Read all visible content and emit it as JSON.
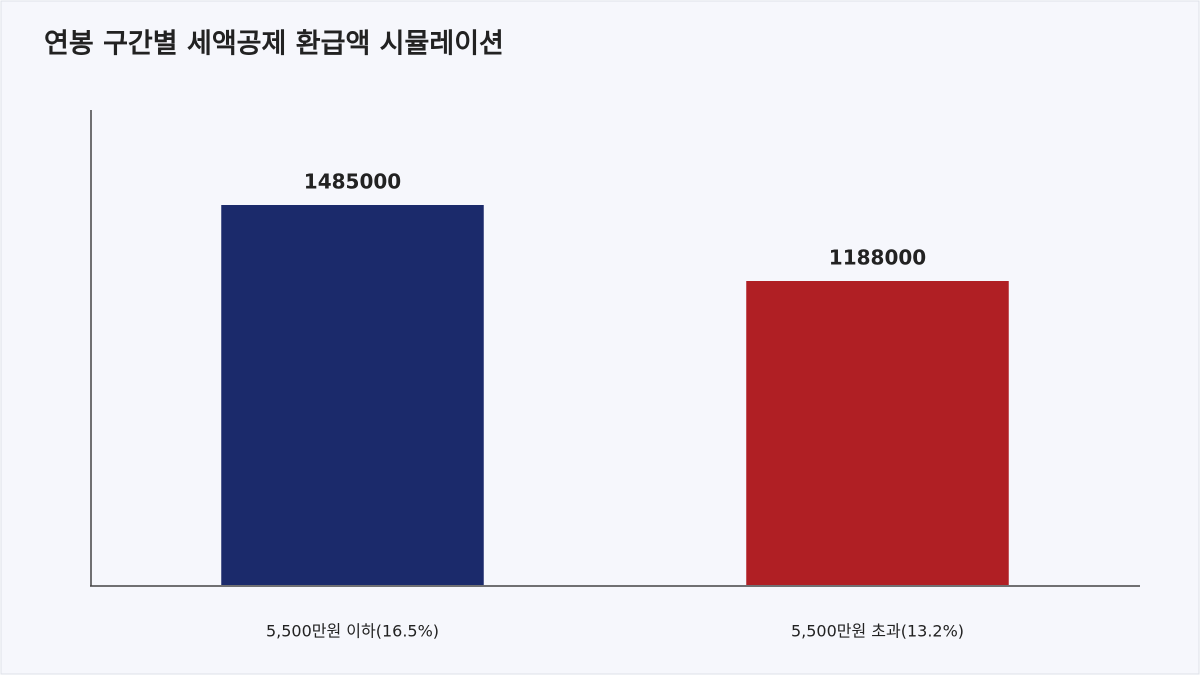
{
  "chart_data": {
    "type": "bar",
    "title": "연봉 구간별 세액공제 환급액 시뮬레이션",
    "categories": [
      "5,500만원 이하(16.5%)",
      "5,500만원 초과(13.2%)"
    ],
    "values": [
      1485000,
      1188000
    ],
    "colors": [
      "#1b2a6b",
      "#b01f24"
    ],
    "ylim": [
      0,
      1856250
    ]
  }
}
